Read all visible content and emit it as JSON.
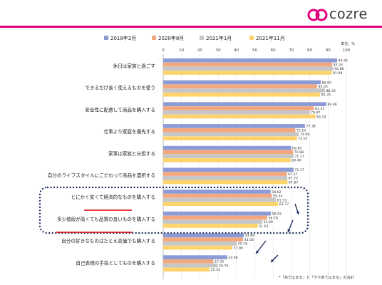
{
  "brand": {
    "name": "cozre",
    "accent": "#e2007e"
  },
  "chart_data": {
    "type": "bar",
    "orientation": "horizontal",
    "unit_note": "単位：%",
    "footnote": "*「あてはまる」と「ややあてはまる」の合計",
    "xlim": [
      0,
      100
    ],
    "ticks": [
      0,
      10,
      20,
      30,
      40,
      50,
      60,
      70,
      80,
      90,
      100
    ],
    "legend_position": "top",
    "categories": [
      "休日は家族と過ごす",
      "できるだけ長く使えるものを使う",
      "安全性に配慮して商品を購入する",
      "仕事より家庭を優先する",
      "家事は家族と分担する",
      "自分のライフスタイルにこだわって商品を選択する",
      "とにかく安くて経済的なものを購入する",
      "多少値段が高くても品質の良いものを購入する",
      "自分の好きなものはたとえ高価でも購入する",
      "自己表現の手段としてものを購入する"
    ],
    "series": [
      {
        "name": "2018年2月",
        "color": "#8a9bd6",
        "values": [
          94.95,
          86.0,
          89.06,
          77.38,
          69.85,
          71.17,
          58.62,
          58.82,
          43.99,
          34.96
        ]
      },
      {
        "name": "2020年8月",
        "color": "#f2a77e",
        "values": [
          92.24,
          84.05,
          82.31,
          72.1,
          70.88,
          67.57,
          59.34,
          56.78,
          43.58,
          27.35
        ]
      },
      {
        "name": "2021年1月",
        "color": "#c6c6c6",
        "values": [
          92.86,
          88.35,
          79.97,
          74.08,
          71.17,
          67.72,
          61.53,
          54.09,
          40.18,
          29.76
        ]
      },
      {
        "name": "2021年11月",
        "color": "#fdd46b",
        "values": [
          91.99,
          85.7,
          83.1,
          73.07,
          69.49,
          67.87,
          62.77,
          51.63,
          37.8,
          25.31
        ]
      }
    ]
  }
}
